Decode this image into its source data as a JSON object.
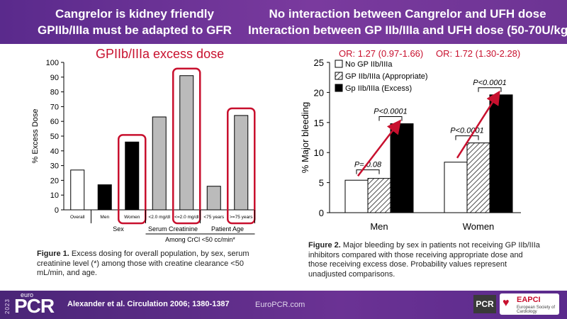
{
  "header": {
    "left_line1": "Cangrelor is kidney friendly",
    "left_line2": "GPIIb/IIIa must be adapted to GFR",
    "right_line1": "No interaction between Cangrelor and UFH dose",
    "right_line2": "Interaction between GP IIb/IIIa and UFH dose (50-70U/kg)"
  },
  "left_panel": {
    "highlight_title": "GPIIb/IIIa excess dose",
    "caption_label": "Figure 1.",
    "caption_text": " Excess dosing for overall population, by sex, serum creatinine level (*) among those with creatine clearance <50 mL/min, and age."
  },
  "right_panel": {
    "or_left": "OR: 1.27 (0.97-1.66)",
    "or_right": "OR: 1.72 (1.30-2.28)",
    "caption_label": "Figure 2.",
    "caption_text": " Major bleeding by sex in patients not receiving GP IIb/IIIa inhibitors compared with those receiving appropriate dose and those receiving excess dose. Probability values represent unadjusted comparisons."
  },
  "chart_data": [
    {
      "type": "bar",
      "ylabel": "% Excess Dose",
      "xlabel": "Among CrCl <50 cc/min*",
      "ylim": [
        0,
        100
      ],
      "yticks": [
        0,
        10,
        20,
        30,
        40,
        50,
        60,
        70,
        80,
        90,
        100
      ],
      "categories": [
        "Overall",
        "Men",
        "Women",
        "<2.0 mg/dl",
        "<=2.0 mg/dl",
        "<75 years",
        ">=75 years"
      ],
      "values": [
        27,
        17,
        46,
        63,
        91,
        16,
        64
      ],
      "bar_colors": [
        "#ffffff",
        "#000000",
        "#000000",
        "#bbbbbb",
        "#bbbbbb",
        "#bbbbbb",
        "#bbbbbb"
      ],
      "group_labels": [
        "Sex",
        "Serum Creatinine",
        "Patient Age"
      ],
      "highlighted": [
        "Women",
        "<=2.0 mg/dl",
        ">=75 years"
      ],
      "highlight_color": "#c8102e"
    },
    {
      "type": "bar",
      "ylabel": "% Major bleeding",
      "ylim": [
        0,
        25
      ],
      "yticks": [
        0,
        5,
        10,
        15,
        20,
        25
      ],
      "categories": [
        "Men",
        "Women"
      ],
      "series": [
        {
          "name": "No GP IIb/IIIa",
          "values": [
            5.4,
            8.4
          ]
        },
        {
          "name": "GP IIb/IIIa (Appropriate)",
          "values": [
            5.7,
            11.6
          ]
        },
        {
          "name": "Gp IIb/IIIa (Excess)",
          "values": [
            14.8,
            19.6
          ]
        }
      ],
      "annotations": [
        "P= 0.08",
        "P<0.0001",
        "P<0.0001",
        "P<0.0001"
      ],
      "legend_position": "top-left",
      "arrow_color": "#c8102e"
    }
  ],
  "footer": {
    "logo_year": "2023",
    "logo_euro": "euro",
    "logo_pcr": "PCR",
    "reference": "Alexander et al. Circulation 2006; 1380-1387",
    "site": "EuroPCR.com",
    "pcr_badge": "PCR",
    "eapci_label": "EAPCI",
    "eapci_sub": "European Society of Cardiology"
  }
}
